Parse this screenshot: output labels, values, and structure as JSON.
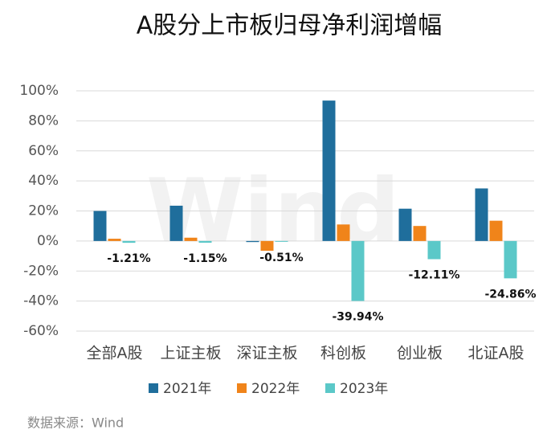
{
  "chart_data": {
    "type": "bar",
    "title": "A股分上市板归母净利润增幅",
    "categories": [
      "全部A股",
      "上证主板",
      "深证主板",
      "科创板",
      "创业板",
      "北证A股"
    ],
    "series": [
      {
        "name": "2021年",
        "color": "#1f6e9c",
        "values": [
          20,
          23.5,
          -0.7,
          93.5,
          21.5,
          35
        ]
      },
      {
        "name": "2022年",
        "color": "#f0841a",
        "values": [
          1.5,
          2.2,
          -6.5,
          11,
          10,
          13.5
        ]
      },
      {
        "name": "2023年",
        "color": "#5bc8c8",
        "values": [
          -1.21,
          -1.15,
          -0.51,
          -39.94,
          -12.11,
          -24.86
        ],
        "value_labels": [
          "-1.21%",
          "-1.15%",
          "-0.51%",
          "-39.94%",
          "-12.11%",
          "-24.86%"
        ]
      }
    ],
    "ylim": [
      -60,
      100
    ],
    "yticks": [
      {
        "value": -60,
        "label": "-60%"
      },
      {
        "value": -40,
        "label": "-40%"
      },
      {
        "value": -20,
        "label": "-20%"
      },
      {
        "value": 0,
        "label": "0%"
      },
      {
        "value": 20,
        "label": "20%"
      },
      {
        "value": 40,
        "label": "40%"
      },
      {
        "value": 60,
        "label": "60%"
      },
      {
        "value": 80,
        "label": "80%"
      },
      {
        "value": 100,
        "label": "100%"
      }
    ],
    "grid": true,
    "watermark": "Wind",
    "source": "数据来源：Wind"
  }
}
